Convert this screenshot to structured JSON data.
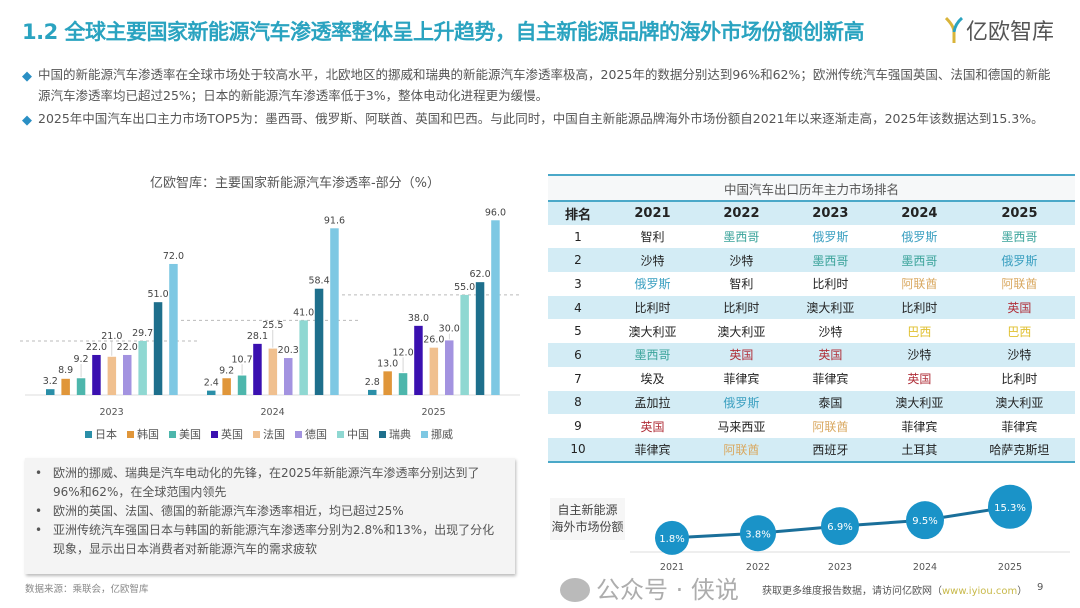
{
  "header": {
    "title": "1.2 全球主要国家新能源汽车渗透率整体呈上升趋势，自主新能源品牌的海外市场份额创新高",
    "logo_text": "亿欧智库"
  },
  "bullets": [
    "中国的新能源汽车渗透率在全球市场处于较高水平，北欧地区的挪威和瑞典的新能源汽车渗透率极高，2025年的数据分别达到96%和62%；欧洲传统汽车强国英国、法国和德国的新能源汽车渗透率均已超过25%；日本的新能源汽车渗透率低于3%，整体电动化进程更为缓慢。",
    "2025年中国汽车出口主力市场TOP5为：墨西哥、俄罗斯、阿联酋、英国和巴西。与此同时，中国自主新能源品牌海外市场份额自2021年以来逐渐走高，2025年该数据达到15.3%。"
  ],
  "chart_data": [
    {
      "type": "bar",
      "title": "亿欧智库：主要国家新能源汽车渗透率-部分（%）",
      "categories": [
        "2023",
        "2024",
        "2025"
      ],
      "series": [
        {
          "name": "日本",
          "color": "#2b8fa8",
          "values": [
            3.2,
            2.4,
            2.8
          ],
          "labels": [
            "3.2",
            "2.4",
            "2.8"
          ]
        },
        {
          "name": "韩国",
          "color": "#e0963a",
          "values": [
            8.9,
            9.2,
            13.0
          ],
          "labels": [
            "8.9",
            "9.2",
            "13.0"
          ]
        },
        {
          "name": "美国",
          "color": "#4db6ac",
          "values": [
            9.2,
            10.7,
            12.0
          ],
          "labels": [
            "9.2",
            "10.7",
            "12.0"
          ]
        },
        {
          "name": "英国",
          "color": "#3a10b0",
          "values": [
            22.0,
            28.1,
            38.0
          ],
          "labels": [
            "22.0",
            "28.1",
            "38.0"
          ]
        },
        {
          "name": "法国",
          "color": "#f0c08f",
          "values": [
            21.0,
            25.5,
            26.0
          ],
          "labels": [
            "21.0",
            "25.5",
            "26.0"
          ]
        },
        {
          "name": "德国",
          "color": "#a393e0",
          "values": [
            22.0,
            20.3,
            30.0
          ],
          "labels": [
            "22.0",
            "20.3",
            "30.0"
          ]
        },
        {
          "name": "中国",
          "color": "#8fd8d2",
          "values": [
            29.7,
            41.0,
            55.0
          ],
          "labels": [
            "29.7",
            "41.0",
            "55.0"
          ]
        },
        {
          "name": "瑞典",
          "color": "#1e6f8c",
          "values": [
            51.0,
            58.4,
            62.0
          ],
          "labels": [
            "51.0",
            "58.4",
            "62.0"
          ]
        },
        {
          "name": "挪威",
          "color": "#7ec8e3",
          "values": [
            72.0,
            91.6,
            96.0
          ],
          "labels": [
            "72.0",
            "91.6",
            "96.0"
          ]
        }
      ],
      "ylim": [
        0,
        100
      ],
      "grid": false,
      "legend": "bottom"
    },
    {
      "type": "line",
      "title": "自主新能源海外市场份额",
      "x": [
        "2021",
        "2022",
        "2023",
        "2024",
        "2025"
      ],
      "values": [
        1.8,
        3.8,
        6.9,
        9.5,
        15.3
      ],
      "labels": [
        "1.8%",
        "3.8%",
        "6.9%",
        "9.5%",
        "15.3%"
      ],
      "color": "#1a93c8"
    }
  ],
  "notes": [
    "欧洲的挪威、瑞典是汽车电动化的先锋，在2025年新能源汽车渗透率分别达到了96%和62%，在全球范围内领先",
    "欧洲的英国、法国、德国的新能源汽车渗透率相近，均已超过25%",
    "亚洲传统汽车强国日本与韩国的新能源汽车渗透率分别为2.8%和13%，出现了分化现象，显示出日本消费者对新能源汽车的需求疲软"
  ],
  "source": "数据来源：乘联会，亿欧智库",
  "table": {
    "caption": "中国汽车出口历年主力市场排名",
    "headers": [
      "排名",
      "2021",
      "2022",
      "2023",
      "2024",
      "2025"
    ],
    "rows": [
      [
        "1",
        "智利",
        "墨西哥",
        "俄罗斯",
        "俄罗斯",
        "墨西哥"
      ],
      [
        "2",
        "沙特",
        "沙特",
        "墨西哥",
        "墨西哥",
        "俄罗斯"
      ],
      [
        "3",
        "俄罗斯",
        "智利",
        "比利时",
        "阿联酋",
        "阿联酋"
      ],
      [
        "4",
        "比利时",
        "比利时",
        "澳大利亚",
        "比利时",
        "英国"
      ],
      [
        "5",
        "澳大利亚",
        "澳大利亚",
        "沙特",
        "巴西",
        "巴西"
      ],
      [
        "6",
        "墨西哥",
        "英国",
        "英国",
        "沙特",
        "沙特"
      ],
      [
        "7",
        "埃及",
        "菲律宾",
        "菲律宾",
        "英国",
        "比利时"
      ],
      [
        "8",
        "孟加拉",
        "俄罗斯",
        "泰国",
        "澳大利亚",
        "澳大利亚"
      ],
      [
        "9",
        "英国",
        "马来西亚",
        "阿联酋",
        "菲律宾",
        "菲律宾"
      ],
      [
        "10",
        "菲律宾",
        "阿联酋",
        "西班牙",
        "土耳其",
        "哈萨克斯坦"
      ]
    ],
    "highlight_colors": {
      "墨西哥": "#3aa39a",
      "俄罗斯": "#3a9fc0",
      "阿联酋": "#d9a860",
      "英国": "#b0303a",
      "巴西": "#e0c030"
    }
  },
  "share": {
    "label_line1": "自主新能源",
    "label_line2": "海外市场份额"
  },
  "footer": {
    "text": "获取更多维度报告数据，请访问亿欧网（",
    "link": "www.iyiou.com",
    "close": "）",
    "page": "9"
  },
  "watermark": "公众号 · 侠说"
}
